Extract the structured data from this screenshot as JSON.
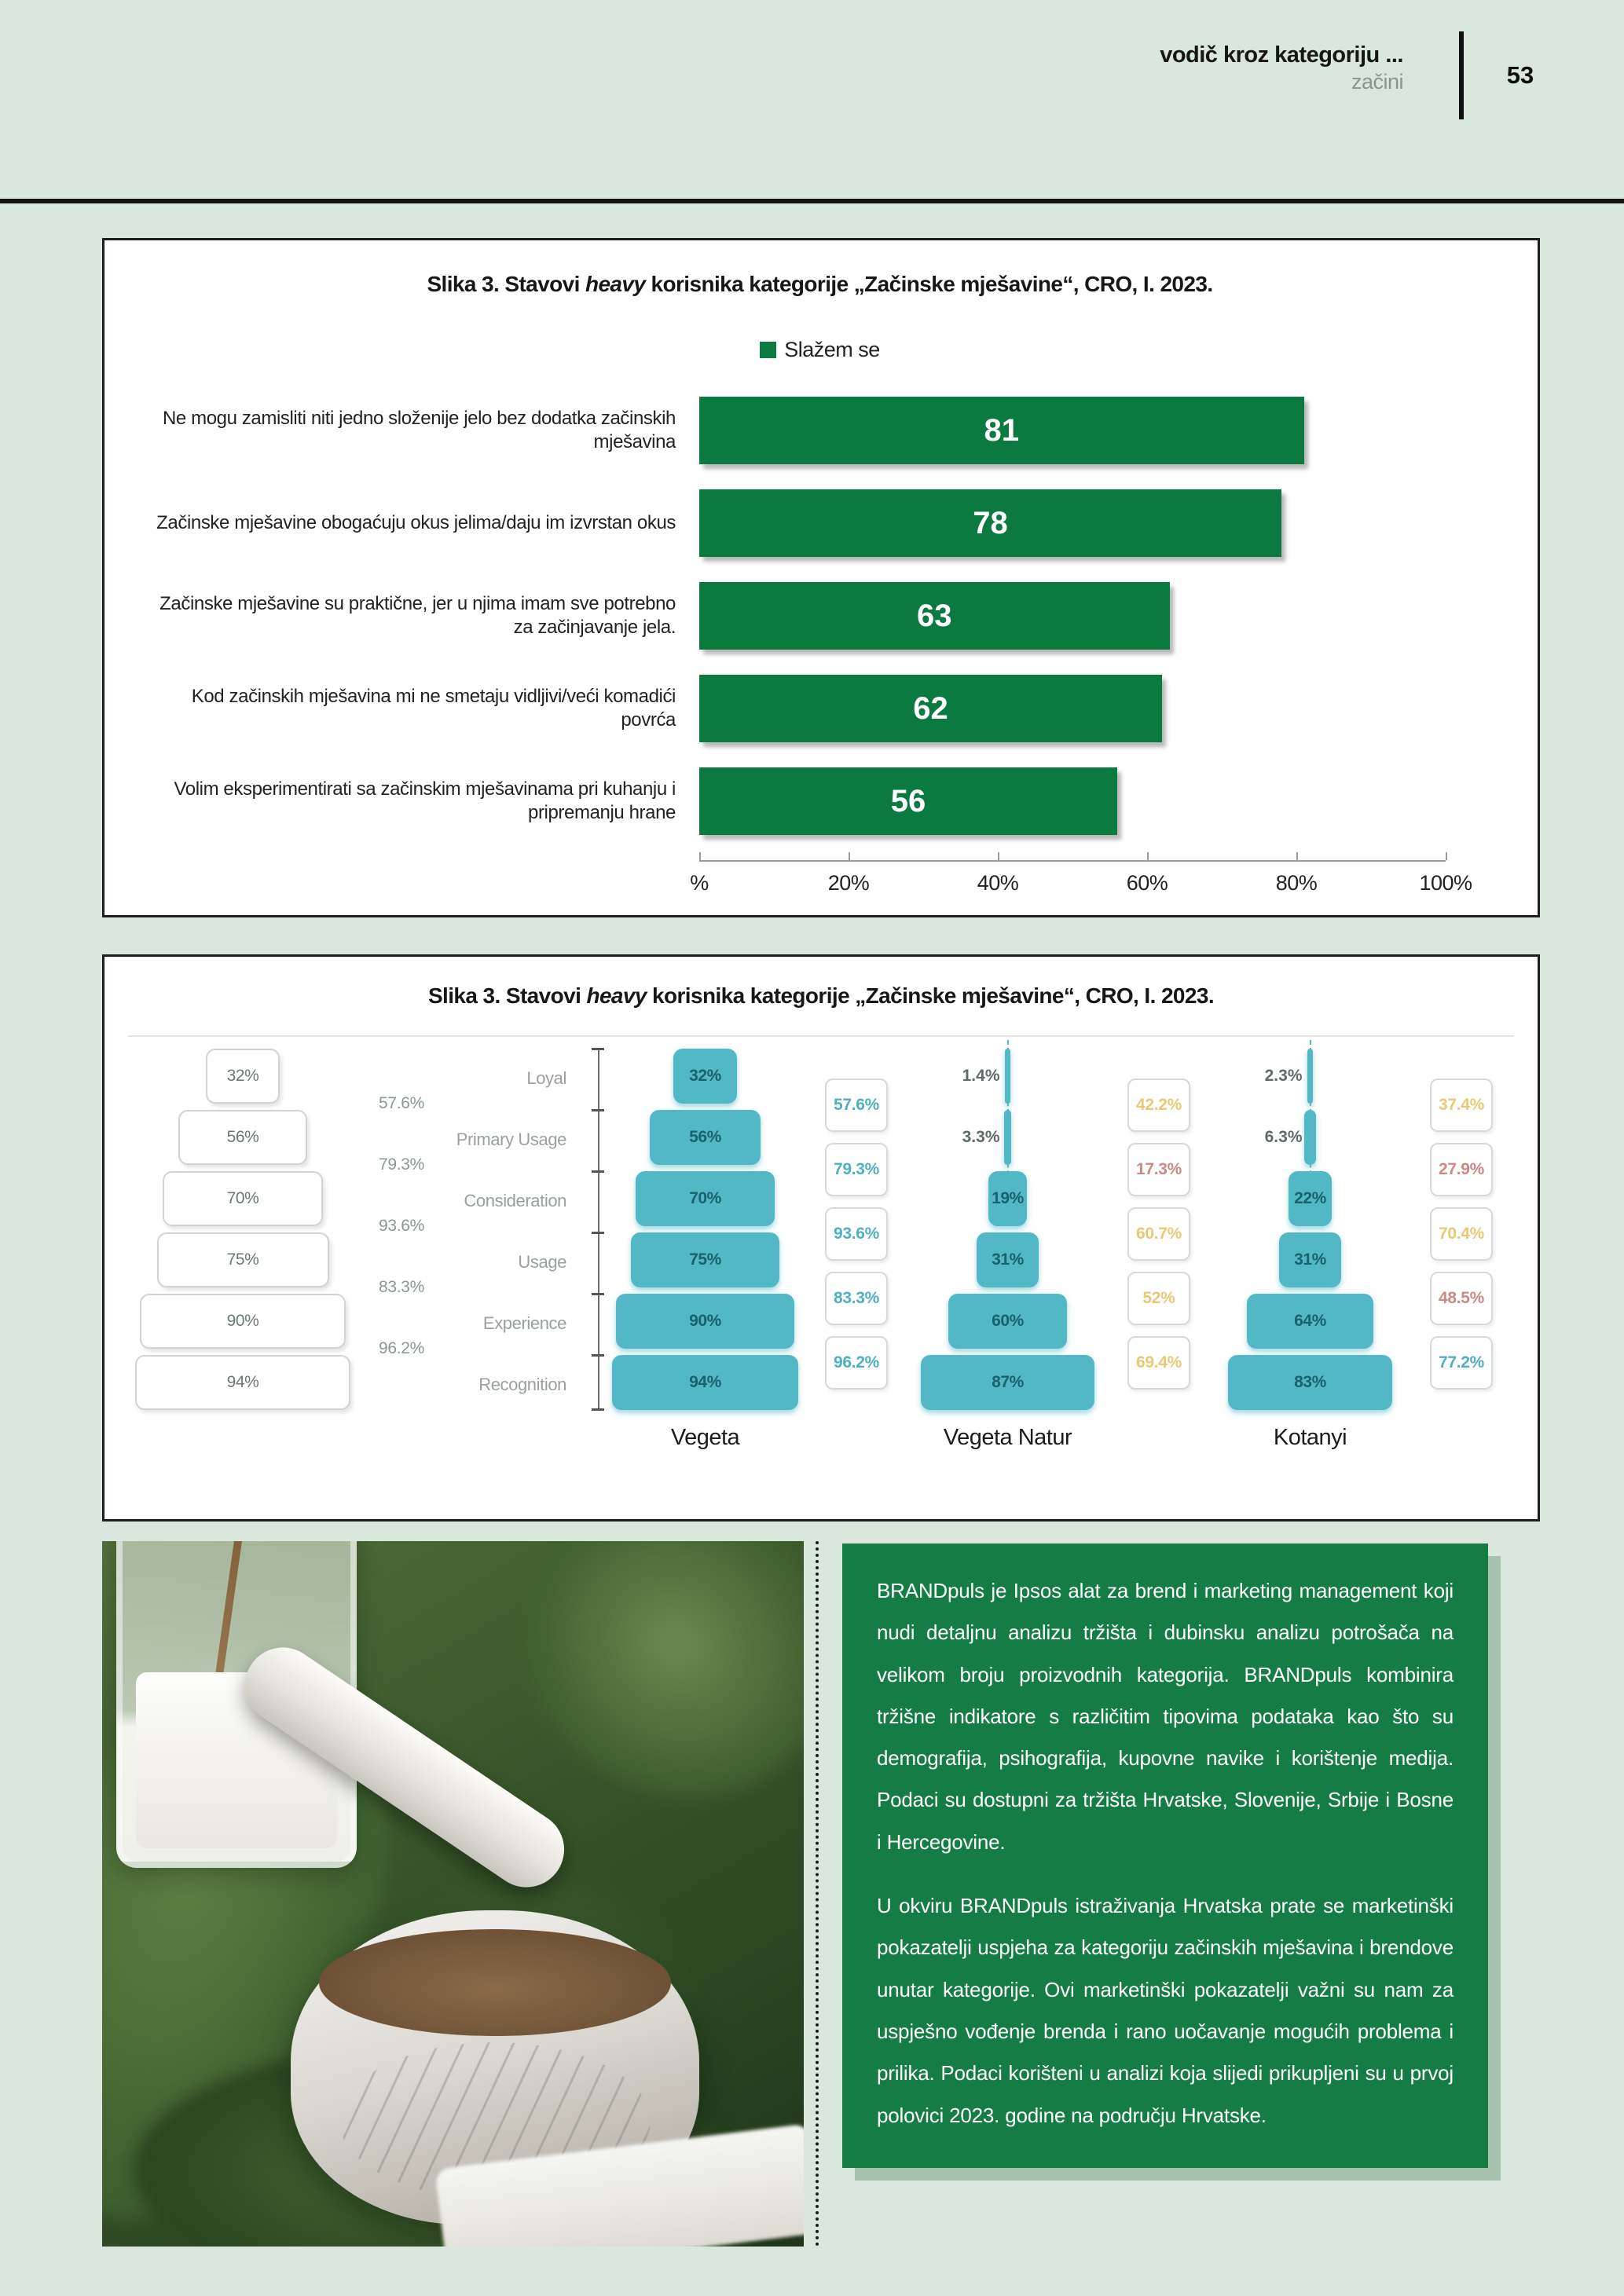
{
  "colors": {
    "page_bg": "#d9e7dd",
    "bar_green": "#0b7a3e",
    "box_green": "#157c44",
    "funnel_teal": "#53b8c6",
    "tones": {
      "teal": "#4fb0bf",
      "yellow": "#e9c973",
      "red": "#cc8983",
      "gray": "#8a9898"
    }
  },
  "header": {
    "title": "vodič kroz kategoriju ...",
    "subtitle": "začini",
    "page_number": "53"
  },
  "chart1": {
    "title_pre": "Slika 3. Stavovi ",
    "title_italic": "heavy",
    "title_post": " korisnika kategorije „Začinske mješavine“, CRO, I. 2023.",
    "legend_label": "Slažem se",
    "chart_data": {
      "type": "bar",
      "orientation": "horizontal",
      "series_name": "Slažem se",
      "categories": [
        "Ne mogu zamisliti niti jedno složenije jelo bez dodatka začinskih mješavina",
        "Začinske mješavine obogaćuju okus jelima/daju im izvrstan okus",
        "Začinske mješavine su praktične, jer u njima imam sve potrebno za začinjavanje jela.",
        "Kod začinskih mješavina mi ne smetaju vidljivi/veći komadići povrća",
        "Volim eksperimentirati sa začinskim mješavinama pri kuhanju i pripremanju hrane"
      ],
      "values": [
        81,
        78,
        63,
        62,
        56
      ],
      "xlim": [
        0,
        100
      ],
      "x_ticks": [
        "%",
        "20%",
        "40%",
        "60%",
        "80%",
        "100%"
      ],
      "grid": false,
      "legend_position": "top-center"
    }
  },
  "chart2": {
    "title_pre": "Slika 3. Stavovi ",
    "title_italic": "heavy",
    "title_post": " korisnika kategorije „Začinske mješavine“, CRO, I. 2023.",
    "chart_data": {
      "type": "funnel",
      "stages": [
        "Loyal",
        "Primary Usage",
        "Consideration",
        "Usage",
        "Experience",
        "Recognition"
      ],
      "ghost": {
        "values": [
          "32%",
          "56%",
          "70%",
          "75%",
          "90%",
          "94%"
        ],
        "conversions": [
          "57.6%",
          "79.3%",
          "93.6%",
          "83.3%",
          "96.2%"
        ]
      },
      "brands": [
        {
          "name": "Vegeta",
          "values": [
            "32%",
            "56%",
            "70%",
            "75%",
            "90%",
            "94%"
          ],
          "conversions": [
            {
              "value": "57.6%",
              "tone": "teal"
            },
            {
              "value": "79.3%",
              "tone": "teal"
            },
            {
              "value": "93.6%",
              "tone": "teal"
            },
            {
              "value": "83.3%",
              "tone": "teal"
            },
            {
              "value": "96.2%",
              "tone": "teal"
            }
          ]
        },
        {
          "name": "Vegeta Natur",
          "values": [
            "1.4%",
            "3.3%",
            "19%",
            "31%",
            "60%",
            "87%"
          ],
          "conversions": [
            {
              "value": "42.2%",
              "tone": "yellow"
            },
            {
              "value": "17.3%",
              "tone": "red"
            },
            {
              "value": "60.7%",
              "tone": "yellow"
            },
            {
              "value": "52%",
              "tone": "yellow"
            },
            {
              "value": "69.4%",
              "tone": "yellow"
            }
          ]
        },
        {
          "name": "Kotanyi",
          "values": [
            "2.3%",
            "6.3%",
            "22%",
            "31%",
            "64%",
            "83%"
          ],
          "conversions": [
            {
              "value": "37.4%",
              "tone": "yellow"
            },
            {
              "value": "27.9%",
              "tone": "red"
            },
            {
              "value": "70.4%",
              "tone": "yellow"
            },
            {
              "value": "48.5%",
              "tone": "red"
            },
            {
              "value": "77.2%",
              "tone": "teal"
            }
          ]
        }
      ]
    }
  },
  "bottom": {
    "text_box": {
      "paragraphs": [
        "BRANDpuls je Ipsos alat za brend i marketing management koji nudi detaljnu analizu tržišta i dubinsku analizu potrošača na velikom broju proizvodnih kategorija. BRANDpuls kombinira tržišne indikatore s različitim tipovima podataka kao što su demografija, psihografija, kupovne navike i korištenje medija. Podaci su dostupni za tržišta Hrvatske, Slovenije, Srbije i Bosne i Hercegovine.",
        "U okviru BRANDpuls istraživanja Hrvatska prate se marketinški pokazatelji uspjeha za kategoriju začinskih mješavina i brendove unutar kategorije. Ovi marketinški pokazatelji važni su nam za uspješno vođenje brenda i rano uočavanje mogućih problema i prilika. Podaci korišteni u analizi koja slijedi prikupljeni su u prvoj polovici 2023. godine na području Hrvatske."
      ]
    }
  }
}
